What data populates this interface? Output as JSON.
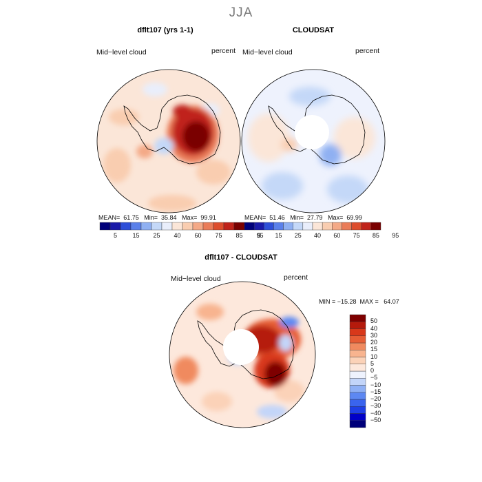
{
  "main_title": "JJA",
  "panels": {
    "model": {
      "title": "dflt107 (yrs 1-1)",
      "subtitle": "Mid−level cloud",
      "units": "percent",
      "stats": "MEAN=  61.75   Min=  35.84   Max=  99.91"
    },
    "obs": {
      "title": "CLOUDSAT",
      "subtitle": "Mid−level cloud",
      "units": "percent",
      "stats": "MEAN=  51.46   Min=  27.79   Max=  69.99"
    },
    "diff": {
      "title": "dflt107 - CLOUDSAT",
      "subtitle": "Mid−level cloud",
      "units": "percent",
      "stats": "MIN = −15.28  MAX =   64.07"
    }
  },
  "colorbar_abs": {
    "colors": [
      "#00007a",
      "#1a1aa8",
      "#2e4fd8",
      "#5a80ea",
      "#8fb0f2",
      "#c4d8f8",
      "#e9eefb",
      "#fbe6d8",
      "#f9cdb0",
      "#f4a986",
      "#ea7c58",
      "#dd4d2c",
      "#c0231a",
      "#7a0000"
    ],
    "ticks": [
      "5",
      "15",
      "25",
      "40",
      "60",
      "75",
      "85",
      "95"
    ]
  },
  "colorbar_diff": {
    "colors": [
      "#00007a",
      "#0000c8",
      "#1f3fe6",
      "#3a64ee",
      "#5d88f2",
      "#8fb0f5",
      "#c3d5f9",
      "#eef2fd",
      "#fde8dc",
      "#fbd2b8",
      "#f8b48f",
      "#f08a5f",
      "#e65d35",
      "#d8381a",
      "#b51a0c",
      "#7e0000"
    ],
    "ticks": [
      "50",
      "40",
      "30",
      "20",
      "15",
      "10",
      "5",
      "0",
      "−5",
      "−10",
      "−15",
      "−20",
      "−30",
      "−40",
      "−50"
    ]
  }
}
